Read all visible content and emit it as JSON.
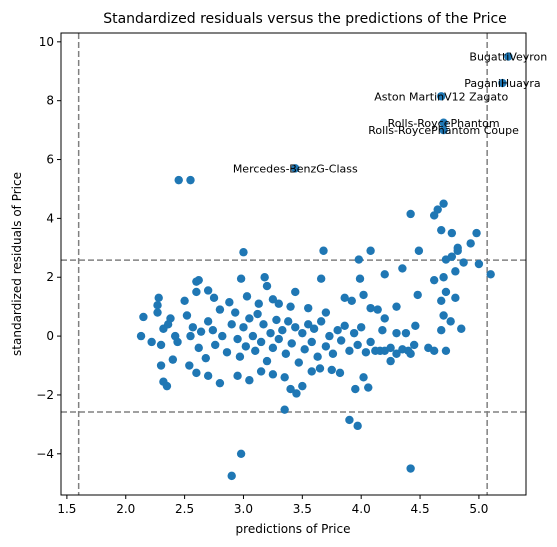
{
  "chart_data": {
    "type": "scatter",
    "title": "Standardized residuals versus the predictions of the Price",
    "xlabel": "predictions of Price",
    "ylabel": "standardized residuals of Price",
    "xlim": [
      1.45,
      5.4
    ],
    "ylim": [
      -5.4,
      10.3
    ],
    "xticks": [
      1.5,
      2.0,
      2.5,
      3.0,
      3.5,
      4.0,
      4.5,
      5.0
    ],
    "xtick_labels": [
      "1.5",
      "2.0",
      "2.5",
      "3.0",
      "3.5",
      "4.0",
      "4.5",
      "5.0"
    ],
    "yticks": [
      -4,
      -2,
      0,
      2,
      4,
      6,
      8,
      10
    ],
    "ytick_labels": [
      "−4",
      "−2",
      "0",
      "2",
      "4",
      "6",
      "8",
      "10"
    ],
    "grid": false,
    "point_color": "#1f77b4",
    "reference_line_color": "#808080",
    "vertical_lines": [
      1.6,
      5.07
    ],
    "horizontal_lines": [
      -2.58,
      2.58
    ],
    "annotations": [
      {
        "text": "BugattiVeyron",
        "x": 5.25,
        "y": 9.5
      },
      {
        "text": "PaganiHuayra",
        "x": 5.2,
        "y": 8.6
      },
      {
        "text": "Aston MartinV12 Zagato",
        "x": 4.68,
        "y": 8.15
      },
      {
        "text": "Rolls-RoycePhantom",
        "x": 4.7,
        "y": 7.25
      },
      {
        "text": "Rolls-RoycePhantom Coupe",
        "x": 4.7,
        "y": 7.0
      },
      {
        "text": "Mercedes-BenzG-Class",
        "x": 3.44,
        "y": 5.7
      }
    ],
    "points": [
      [
        5.25,
        9.5
      ],
      [
        5.2,
        8.6
      ],
      [
        4.68,
        8.15
      ],
      [
        4.7,
        7.25
      ],
      [
        4.7,
        7.0
      ],
      [
        3.44,
        5.7
      ],
      [
        2.45,
        5.3
      ],
      [
        2.55,
        5.3
      ],
      [
        4.7,
        4.5
      ],
      [
        4.65,
        4.3
      ],
      [
        4.42,
        4.15
      ],
      [
        4.62,
        4.1
      ],
      [
        4.68,
        3.6
      ],
      [
        4.77,
        3.5
      ],
      [
        4.98,
        3.5
      ],
      [
        4.93,
        3.15
      ],
      [
        4.82,
        3.0
      ],
      [
        4.82,
        2.9
      ],
      [
        3.0,
        2.85
      ],
      [
        3.68,
        2.9
      ],
      [
        4.08,
        2.9
      ],
      [
        4.49,
        2.9
      ],
      [
        4.77,
        2.7
      ],
      [
        4.72,
        2.6
      ],
      [
        3.98,
        2.6
      ],
      [
        4.87,
        2.5
      ],
      [
        5.0,
        2.45
      ],
      [
        5.1,
        2.1
      ],
      [
        4.35,
        2.3
      ],
      [
        4.2,
        2.1
      ],
      [
        4.8,
        2.2
      ],
      [
        4.7,
        2.0
      ],
      [
        4.62,
        1.9
      ],
      [
        3.99,
        1.95
      ],
      [
        3.66,
        1.95
      ],
      [
        3.18,
        2.0
      ],
      [
        2.98,
        1.95
      ],
      [
        2.62,
        1.9
      ],
      [
        2.6,
        1.85
      ],
      [
        2.7,
        1.55
      ],
      [
        4.48,
        1.4
      ],
      [
        4.72,
        1.5
      ],
      [
        2.28,
        1.3
      ],
      [
        2.27,
        1.05
      ],
      [
        2.6,
        1.5
      ],
      [
        2.5,
        1.2
      ],
      [
        2.75,
        1.3
      ],
      [
        2.88,
        1.15
      ],
      [
        3.03,
        1.35
      ],
      [
        3.13,
        1.1
      ],
      [
        3.2,
        1.7
      ],
      [
        3.25,
        1.25
      ],
      [
        3.3,
        1.1
      ],
      [
        3.44,
        1.5
      ],
      [
        3.4,
        1.0
      ],
      [
        3.55,
        0.95
      ],
      [
        3.7,
        0.8
      ],
      [
        3.86,
        1.3
      ],
      [
        3.92,
        1.2
      ],
      [
        4.02,
        1.4
      ],
      [
        4.08,
        0.95
      ],
      [
        4.14,
        0.9
      ],
      [
        4.3,
        1.0
      ],
      [
        4.2,
        0.6
      ],
      [
        4.46,
        0.35
      ],
      [
        4.68,
        1.2
      ],
      [
        4.8,
        1.3
      ],
      [
        4.7,
        0.7
      ],
      [
        4.68,
        0.2
      ],
      [
        4.76,
        0.5
      ],
      [
        4.85,
        0.25
      ],
      [
        4.57,
        -0.4
      ],
      [
        4.62,
        -0.5
      ],
      [
        4.72,
        -0.5
      ],
      [
        2.13,
        0.0
      ],
      [
        2.15,
        0.65
      ],
      [
        2.22,
        -0.2
      ],
      [
        2.3,
        -0.3
      ],
      [
        2.32,
        0.25
      ],
      [
        2.36,
        0.4
      ],
      [
        2.38,
        0.6
      ],
      [
        2.42,
        0.0
      ],
      [
        2.4,
        -0.8
      ],
      [
        2.44,
        -0.2
      ],
      [
        2.52,
        0.7
      ],
      [
        2.55,
        0.0
      ],
      [
        2.57,
        0.3
      ],
      [
        2.62,
        -0.4
      ],
      [
        2.64,
        0.15
      ],
      [
        2.68,
        -0.75
      ],
      [
        2.7,
        0.5
      ],
      [
        2.74,
        0.2
      ],
      [
        2.76,
        -0.3
      ],
      [
        2.8,
        0.9
      ],
      [
        2.82,
        0.0
      ],
      [
        2.86,
        -0.55
      ],
      [
        2.9,
        0.4
      ],
      [
        2.93,
        0.8
      ],
      [
        2.95,
        -0.1
      ],
      [
        2.97,
        -0.7
      ],
      [
        3.0,
        0.3
      ],
      [
        3.02,
        -0.35
      ],
      [
        3.05,
        0.6
      ],
      [
        3.08,
        0.0
      ],
      [
        3.1,
        -0.5
      ],
      [
        3.12,
        0.75
      ],
      [
        3.15,
        -0.2
      ],
      [
        3.17,
        0.4
      ],
      [
        3.2,
        -0.85
      ],
      [
        3.23,
        0.1
      ],
      [
        3.25,
        -0.4
      ],
      [
        3.28,
        0.55
      ],
      [
        3.3,
        -0.1
      ],
      [
        3.33,
        0.2
      ],
      [
        3.36,
        -0.6
      ],
      [
        3.38,
        0.5
      ],
      [
        3.41,
        -0.25
      ],
      [
        3.44,
        0.3
      ],
      [
        3.47,
        -0.9
      ],
      [
        3.5,
        0.1
      ],
      [
        3.52,
        -0.45
      ],
      [
        3.55,
        0.4
      ],
      [
        3.58,
        -0.2
      ],
      [
        3.6,
        0.25
      ],
      [
        3.63,
        -0.7
      ],
      [
        3.66,
        0.5
      ],
      [
        3.7,
        -0.35
      ],
      [
        3.73,
        0.0
      ],
      [
        3.76,
        -0.6
      ],
      [
        3.8,
        0.2
      ],
      [
        3.83,
        -0.15
      ],
      [
        3.86,
        0.35
      ],
      [
        3.9,
        -0.5
      ],
      [
        3.94,
        0.1
      ],
      [
        3.97,
        -0.3
      ],
      [
        4.0,
        0.3
      ],
      [
        4.04,
        -0.55
      ],
      [
        4.08,
        -0.2
      ],
      [
        4.12,
        -0.5
      ],
      [
        4.16,
        -0.5
      ],
      [
        4.2,
        -0.5
      ],
      [
        4.25,
        -0.4
      ],
      [
        4.3,
        -0.6
      ],
      [
        4.35,
        -0.45
      ],
      [
        4.4,
        -0.5
      ],
      [
        4.45,
        -0.3
      ],
      [
        4.18,
        0.2
      ],
      [
        4.3,
        0.1
      ],
      [
        4.38,
        0.1
      ],
      [
        4.25,
        -0.85
      ],
      [
        4.42,
        -0.6
      ],
      [
        2.27,
        0.8
      ],
      [
        2.3,
        -1.0
      ],
      [
        2.32,
        -1.55
      ],
      [
        2.35,
        -1.7
      ],
      [
        2.54,
        -1.0
      ],
      [
        2.6,
        -1.25
      ],
      [
        2.7,
        -1.35
      ],
      [
        2.8,
        -1.6
      ],
      [
        2.95,
        -1.35
      ],
      [
        3.05,
        -1.5
      ],
      [
        3.15,
        -1.2
      ],
      [
        3.25,
        -1.3
      ],
      [
        3.35,
        -1.4
      ],
      [
        3.4,
        -1.8
      ],
      [
        3.45,
        -1.95
      ],
      [
        3.5,
        -1.7
      ],
      [
        3.58,
        -1.2
      ],
      [
        3.65,
        -1.1
      ],
      [
        3.75,
        -1.15
      ],
      [
        3.82,
        -1.25
      ],
      [
        3.95,
        -1.8
      ],
      [
        4.02,
        -1.4
      ],
      [
        4.06,
        -1.75
      ],
      [
        3.9,
        -2.85
      ],
      [
        3.97,
        -3.05
      ],
      [
        3.35,
        -2.5
      ],
      [
        2.98,
        -4.0
      ],
      [
        2.9,
        -4.75
      ],
      [
        4.42,
        -4.5
      ]
    ]
  }
}
